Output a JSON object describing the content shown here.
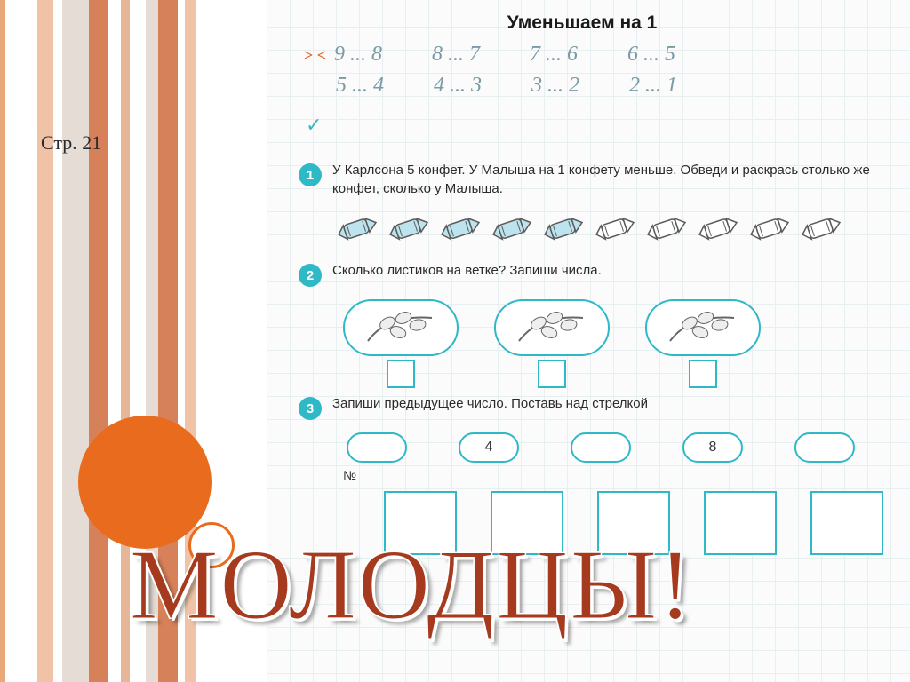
{
  "page_reference": "Стр. 21",
  "decor": {
    "stripe_colors": [
      "#e8a97a",
      "#ffffff",
      "#f0c3a6",
      "#ffffff",
      "#e4dcd5",
      "#d6815a",
      "#ffffff",
      "#e6b698",
      "#ffffff",
      "#e4dcd5",
      "#d6815a",
      "#ffffff",
      "#f0c3a6"
    ],
    "big_circle_color": "#e86b1e",
    "small_circle_border": "#e86b1e"
  },
  "overlay_text": "МОЛОДЦЫ!",
  "workbook": {
    "title": "Уменьшаем на 1",
    "compare_symbol": "> <",
    "compare_rows": [
      [
        "9 ... 8",
        "8 ... 7",
        "7 ... 6",
        "6 ... 5"
      ],
      [
        "5 ... 4",
        "4 ... 3",
        "3 ... 2",
        "2 ... 1"
      ]
    ],
    "tasks": [
      {
        "num": "1",
        "text": "У Карлсона 5 конфет. У Малыша на 1 конфету меньше. Обведи и раскрась столько же конфет, сколько у Малыша.",
        "candies": {
          "total": 10,
          "colored": 5,
          "fill_color": "#bde4ee",
          "outline": "#5a5a5a"
        }
      },
      {
        "num": "2",
        "text": "Сколько листиков на ветке? Запиши числа.",
        "leaf_boxes": 3
      },
      {
        "num": "3",
        "text": "Запиши предыдущее число. Поставь над стрелкой",
        "ovals": [
          "",
          "4",
          "",
          "8",
          ""
        ],
        "n_label": "№",
        "bottom_box_count": 5
      }
    ]
  }
}
